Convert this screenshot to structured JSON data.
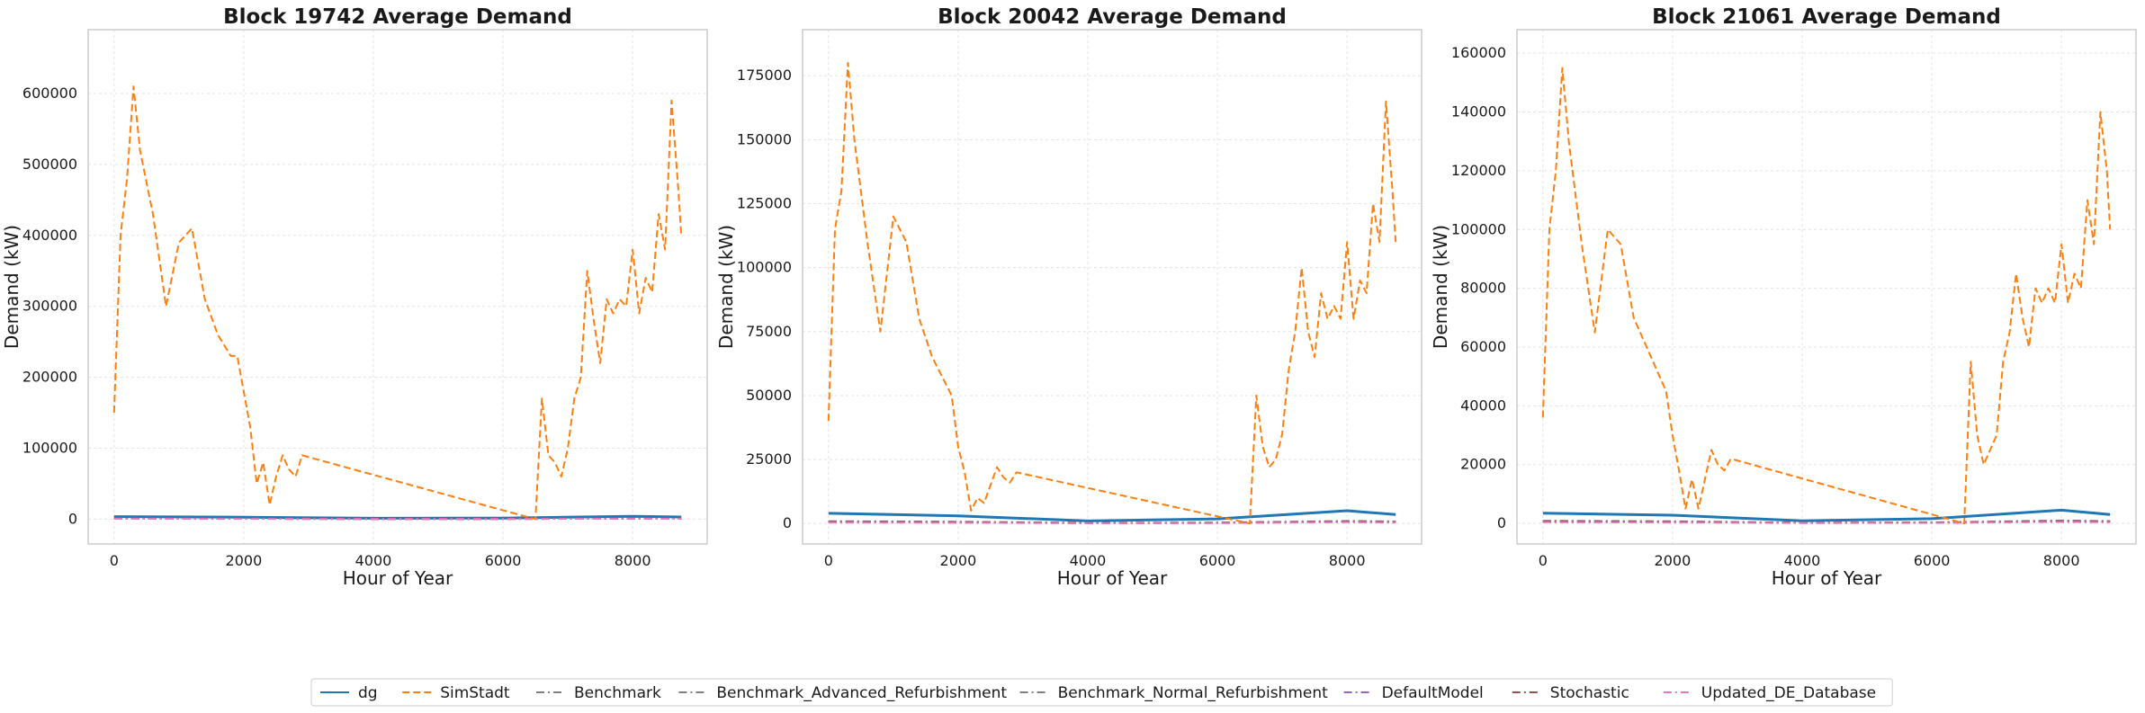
{
  "chart_data": [
    {
      "type": "line",
      "title": "Block 19742 Average Demand",
      "xlabel": "Hour of Year",
      "ylabel": "Demand (kW)",
      "xlim": [
        -400,
        9150
      ],
      "ylim": [
        -35000,
        690000
      ],
      "xticks": [
        0,
        2000,
        4000,
        6000,
        8000
      ],
      "yticks": [
        0,
        100000,
        200000,
        300000,
        400000,
        500000,
        600000
      ],
      "grid": true,
      "series": [
        {
          "name": "SimStadt",
          "x": [
            0,
            100,
            200,
            300,
            400,
            600,
            800,
            1000,
            1200,
            1400,
            1600,
            1800,
            1900,
            2000,
            2100,
            2200,
            2300,
            2400,
            2500,
            2600,
            2700,
            2800,
            2900,
            6500,
            6600,
            6700,
            6800,
            6900,
            7000,
            7100,
            7200,
            7300,
            7400,
            7500,
            7600,
            7700,
            7800,
            7900,
            8000,
            8100,
            8200,
            8300,
            8400,
            8500,
            8600,
            8700,
            8750
          ],
          "values": [
            150000,
            400000,
            480000,
            610000,
            520000,
            430000,
            300000,
            390000,
            410000,
            310000,
            260000,
            230000,
            230000,
            180000,
            130000,
            50000,
            80000,
            20000,
            60000,
            90000,
            70000,
            60000,
            90000,
            0,
            170000,
            90000,
            80000,
            60000,
            100000,
            170000,
            200000,
            350000,
            280000,
            220000,
            310000,
            290000,
            310000,
            300000,
            380000,
            290000,
            340000,
            320000,
            430000,
            380000,
            590000,
            470000,
            400000
          ]
        },
        {
          "name": "dg",
          "x": [
            0,
            2000,
            4000,
            6000,
            8000,
            8750
          ],
          "values": [
            3500,
            2800,
            1200,
            1500,
            4000,
            3000
          ]
        },
        {
          "name": "Benchmark",
          "x": [
            0,
            2000,
            4000,
            6000,
            8000,
            8750
          ],
          "values": [
            1000,
            800,
            300,
            400,
            1100,
            900
          ]
        },
        {
          "name": "Benchmark_Advanced_Refurbishment",
          "x": [
            0,
            2000,
            4000,
            6000,
            8000,
            8750
          ],
          "values": [
            700,
            550,
            200,
            280,
            800,
            650
          ]
        },
        {
          "name": "Benchmark_Normal_Refurbishment",
          "x": [
            0,
            2000,
            4000,
            6000,
            8000,
            8750
          ],
          "values": [
            900,
            700,
            250,
            350,
            950,
            800
          ]
        },
        {
          "name": "DefaultModel",
          "x": [
            0,
            2000,
            4000,
            6000,
            8000,
            8750
          ],
          "values": [
            600,
            500,
            200,
            250,
            700,
            550
          ]
        },
        {
          "name": "Stochastic",
          "x": [
            0,
            2000,
            4000,
            6000,
            8000,
            8750
          ],
          "values": [
            800,
            650,
            250,
            300,
            850,
            700
          ]
        },
        {
          "name": "Updated_DE_Database",
          "x": [
            0,
            2000,
            4000,
            6000,
            8000,
            8750
          ],
          "values": [
            500,
            400,
            150,
            200,
            600,
            450
          ]
        }
      ]
    },
    {
      "type": "line",
      "title": "Block 20042 Average Demand",
      "xlabel": "Hour of Year",
      "ylabel": "Demand (kW)",
      "xlim": [
        -400,
        9150
      ],
      "ylim": [
        -8000,
        193000
      ],
      "xticks": [
        0,
        2000,
        4000,
        6000,
        8000
      ],
      "yticks": [
        0,
        25000,
        50000,
        75000,
        100000,
        125000,
        150000,
        175000
      ],
      "grid": true,
      "series": [
        {
          "name": "SimStadt",
          "x": [
            0,
            100,
            200,
            300,
            400,
            600,
            800,
            1000,
            1200,
            1400,
            1600,
            1800,
            1900,
            2000,
            2100,
            2200,
            2300,
            2400,
            2500,
            2600,
            2700,
            2800,
            2900,
            6500,
            6600,
            6700,
            6800,
            6900,
            7000,
            7100,
            7200,
            7300,
            7400,
            7500,
            7600,
            7700,
            7800,
            7900,
            8000,
            8100,
            8200,
            8300,
            8400,
            8500,
            8600,
            8700,
            8750
          ],
          "values": [
            40000,
            115000,
            130000,
            180000,
            150000,
            110000,
            75000,
            120000,
            110000,
            80000,
            65000,
            55000,
            50000,
            30000,
            20000,
            5000,
            10000,
            8000,
            15000,
            22000,
            18000,
            16000,
            20000,
            0,
            50000,
            30000,
            22000,
            25000,
            35000,
            60000,
            75000,
            100000,
            75000,
            65000,
            90000,
            80000,
            85000,
            80000,
            110000,
            80000,
            95000,
            90000,
            125000,
            110000,
            165000,
            130000,
            110000
          ]
        },
        {
          "name": "dg",
          "x": [
            0,
            2000,
            4000,
            6000,
            8000,
            8750
          ],
          "values": [
            4000,
            3000,
            1000,
            1800,
            5000,
            3500
          ]
        },
        {
          "name": "Benchmark",
          "x": [
            0,
            2000,
            4000,
            6000,
            8000,
            8750
          ],
          "values": [
            900,
            700,
            250,
            350,
            1000,
            800
          ]
        },
        {
          "name": "Benchmark_Advanced_Refurbishment",
          "x": [
            0,
            2000,
            4000,
            6000,
            8000,
            8750
          ],
          "values": [
            600,
            450,
            180,
            250,
            700,
            550
          ]
        },
        {
          "name": "Benchmark_Normal_Refurbishment",
          "x": [
            0,
            2000,
            4000,
            6000,
            8000,
            8750
          ],
          "values": [
            800,
            600,
            220,
            300,
            850,
            700
          ]
        },
        {
          "name": "DefaultModel",
          "x": [
            0,
            2000,
            4000,
            6000,
            8000,
            8750
          ],
          "values": [
            500,
            400,
            150,
            200,
            600,
            450
          ]
        },
        {
          "name": "Stochastic",
          "x": [
            0,
            2000,
            4000,
            6000,
            8000,
            8750
          ],
          "values": [
            700,
            550,
            200,
            280,
            750,
            600
          ]
        },
        {
          "name": "Updated_DE_Database",
          "x": [
            0,
            2000,
            4000,
            6000,
            8000,
            8750
          ],
          "values": [
            400,
            300,
            120,
            160,
            500,
            380
          ]
        }
      ]
    },
    {
      "type": "line",
      "title": "Block 21061 Average Demand",
      "xlabel": "Hour of Year",
      "ylabel": "Demand (kW)",
      "xlim": [
        -400,
        9150
      ],
      "ylim": [
        -7000,
        168000
      ],
      "xticks": [
        0,
        2000,
        4000,
        6000,
        8000
      ],
      "yticks": [
        0,
        20000,
        40000,
        60000,
        80000,
        100000,
        120000,
        140000,
        160000
      ],
      "grid": true,
      "series": [
        {
          "name": "SimStadt",
          "x": [
            0,
            100,
            200,
            300,
            400,
            600,
            800,
            1000,
            1200,
            1400,
            1600,
            1800,
            1900,
            2000,
            2100,
            2200,
            2300,
            2400,
            2500,
            2600,
            2700,
            2800,
            2900,
            6500,
            6600,
            6700,
            6800,
            6900,
            7000,
            7100,
            7200,
            7300,
            7400,
            7500,
            7600,
            7700,
            7800,
            7900,
            8000,
            8100,
            8200,
            8300,
            8400,
            8500,
            8600,
            8700,
            8750
          ],
          "values": [
            36000,
            100000,
            120000,
            155000,
            130000,
            95000,
            65000,
            100000,
            95000,
            70000,
            60000,
            50000,
            45000,
            30000,
            18000,
            5000,
            15000,
            5000,
            15000,
            25000,
            20000,
            18000,
            22000,
            0,
            55000,
            30000,
            20000,
            25000,
            30000,
            55000,
            65000,
            85000,
            70000,
            60000,
            80000,
            75000,
            80000,
            75000,
            95000,
            75000,
            85000,
            80000,
            110000,
            95000,
            140000,
            120000,
            100000
          ]
        },
        {
          "name": "dg",
          "x": [
            0,
            2000,
            4000,
            6000,
            8000,
            8750
          ],
          "values": [
            3500,
            2800,
            900,
            1600,
            4500,
            3000
          ]
        },
        {
          "name": "Benchmark",
          "x": [
            0,
            2000,
            4000,
            6000,
            8000,
            8750
          ],
          "values": [
            900,
            700,
            250,
            350,
            1000,
            800
          ]
        },
        {
          "name": "Benchmark_Advanced_Refurbishment",
          "x": [
            0,
            2000,
            4000,
            6000,
            8000,
            8750
          ],
          "values": [
            600,
            450,
            180,
            250,
            700,
            550
          ]
        },
        {
          "name": "Benchmark_Normal_Refurbishment",
          "x": [
            0,
            2000,
            4000,
            6000,
            8000,
            8750
          ],
          "values": [
            800,
            600,
            220,
            300,
            850,
            700
          ]
        },
        {
          "name": "DefaultModel",
          "x": [
            0,
            2000,
            4000,
            6000,
            8000,
            8750
          ],
          "values": [
            500,
            400,
            150,
            200,
            600,
            450
          ]
        },
        {
          "name": "Stochastic",
          "x": [
            0,
            2000,
            4000,
            6000,
            8000,
            8750
          ],
          "values": [
            700,
            550,
            200,
            280,
            750,
            600
          ]
        },
        {
          "name": "Updated_DE_Database",
          "x": [
            0,
            2000,
            4000,
            6000,
            8000,
            8750
          ],
          "values": [
            400,
            300,
            120,
            160,
            500,
            380
          ]
        }
      ]
    }
  ],
  "legend": {
    "placement": "bottom-center",
    "items": [
      {
        "label": "dg",
        "color": "#1f77b4",
        "dash": "solid"
      },
      {
        "label": "SimStadt",
        "color": "#ff7f0e",
        "dash": "dashed"
      },
      {
        "label": "Benchmark",
        "color": "#7f7f7f",
        "dash": "dashdot"
      },
      {
        "label": "Benchmark_Advanced_Refurbishment",
        "color": "#7f7f7f",
        "dash": "dashdot"
      },
      {
        "label": "Benchmark_Normal_Refurbishment",
        "color": "#7f7f7f",
        "dash": "dashdot"
      },
      {
        "label": "DefaultModel",
        "color": "#9467bd",
        "dash": "dashdot"
      },
      {
        "label": "Stochastic",
        "color": "#8c564b",
        "dash": "dashdot"
      },
      {
        "label": "Updated_DE_Database",
        "color": "#e377c2",
        "dash": "dashdot"
      }
    ]
  }
}
